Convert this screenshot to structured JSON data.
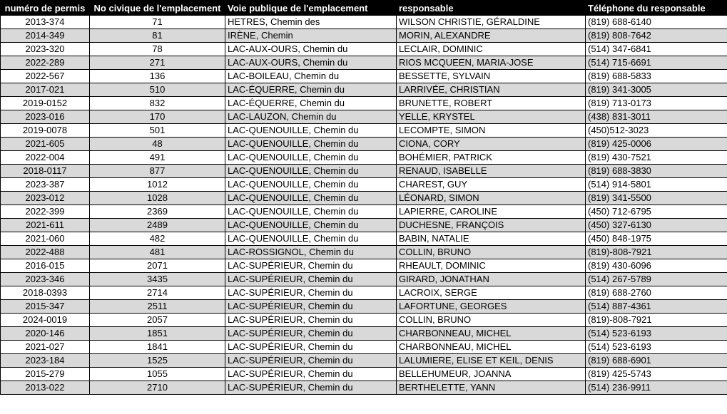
{
  "table": {
    "headers": [
      "numéro de permis",
      "No civique de l'emplacement",
      "Voie publique de l'emplacement",
      "responsable",
      "Téléphone  du responsable"
    ],
    "colors": {
      "header_bg": "#000000",
      "header_text": "#ffffff",
      "row_alt_bg": "#d9d9d9",
      "row_bg": "#ffffff",
      "border": "#000000"
    },
    "rows": [
      {
        "permit": "2013-374",
        "civic": "71",
        "street": "HETRES, Chemin des",
        "responsible": "WILSON CHRISTIE, GÉRALDINE",
        "phone": "(819) 688-6140"
      },
      {
        "permit": "2014-349",
        "civic": "81",
        "street": "IRÈNE, Chemin",
        "responsible": "MORIN, ALEXANDRE",
        "phone": "(819) 808-7642"
      },
      {
        "permit": "2023-320",
        "civic": "78",
        "street": "LAC-AUX-OURS, Chemin du",
        "responsible": "LECLAIR, DOMINIC",
        "phone": "(514) 347-6841"
      },
      {
        "permit": "2022-289",
        "civic": "271",
        "street": "LAC-AUX-OURS, Chemin du",
        "responsible": "RIOS MCQUEEN, MARIA-JOSE",
        "phone": "(514) 715-6691"
      },
      {
        "permit": "2022-567",
        "civic": "136",
        "street": "LAC-BOILEAU, Chemin du",
        "responsible": "BESSETTE, SYLVAIN",
        "phone": "(819) 688-5833"
      },
      {
        "permit": "2017-021",
        "civic": "510",
        "street": "LAC-ÉQUERRE, Chemin du",
        "responsible": "LARRIVÉE, CHRISTIAN",
        "phone": "(819) 341-3005"
      },
      {
        "permit": "2019-0152",
        "civic": "832",
        "street": "LAC-ÉQUERRE, Chemin du",
        "responsible": "BRUNETTE, ROBERT",
        "phone": "(819) 713-0173"
      },
      {
        "permit": "2023-016",
        "civic": "170",
        "street": "LAC-LAUZON, Chemin du",
        "responsible": "YELLE, KRYSTEL",
        "phone": "(438) 831-3011"
      },
      {
        "permit": "2019-0078",
        "civic": "501",
        "street": "LAC-QUENOUILLE, Chemin du",
        "responsible": "LECOMPTE, SIMON",
        "phone": "(450)512-3023"
      },
      {
        "permit": "2021-605",
        "civic": "48",
        "street": "LAC-QUENOUILLE, Chemin du",
        "responsible": "CIONA, CORY",
        "phone": "(819) 425-0006"
      },
      {
        "permit": "2022-004",
        "civic": "491",
        "street": "LAC-QUENOUILLE, Chemin du",
        "responsible": "BOHÉMIER, PATRICK",
        "phone": "(819) 430-7521"
      },
      {
        "permit": "2018-0117",
        "civic": "877",
        "street": "LAC-QUENOUILLE, Chemin du",
        "responsible": "RENAUD, ISABELLE",
        "phone": "(819) 688-3830"
      },
      {
        "permit": "2023-387",
        "civic": "1012",
        "street": "LAC-QUENOUILLE, Chemin du",
        "responsible": "CHAREST, GUY",
        "phone": "(514) 914-5801"
      },
      {
        "permit": "2023-012",
        "civic": "1028",
        "street": "LAC-QUENOUILLE, Chemin du",
        "responsible": "LÉONARD, SIMON",
        "phone": "(819) 341-5500"
      },
      {
        "permit": "2022-399",
        "civic": "2369",
        "street": "LAC-QUENOUILLE, Chemin du",
        "responsible": "LAPIERRE, CAROLINE",
        "phone": "(450) 712-6795"
      },
      {
        "permit": "2021-611",
        "civic": "2489",
        "street": "LAC-QUENOUILLE, Chemin du",
        "responsible": "DUCHESNE, FRANÇOIS",
        "phone": "(450) 327-6130"
      },
      {
        "permit": "2021-060",
        "civic": "482",
        "street": "LAC-QUENOUILLE, Chemin du",
        "responsible": "BABIN, NATALIE",
        "phone": "(450) 848-1975"
      },
      {
        "permit": "2022-488",
        "civic": "481",
        "street": "LAC-ROSSIGNOL, Chemin du",
        "responsible": "COLLIN, BRUNO",
        "phone": "(819)-808-7921"
      },
      {
        "permit": "2016-015",
        "civic": "2071",
        "street": "LAC-SUPÉRIEUR, Chemin du",
        "responsible": "RHEAULT, DOMINIC",
        "phone": "(819) 430-6096"
      },
      {
        "permit": "2023-346",
        "civic": "3435",
        "street": "LAC-SUPÉRIEUR, Chemin du",
        "responsible": "GIRARD, JONATHAN",
        "phone": "(514) 267-5789"
      },
      {
        "permit": "2018-0393",
        "civic": "2714",
        "street": "LAC-SUPÉRIEUR, Chemin du",
        "responsible": "LACROIX, SERGE",
        "phone": "(819) 688-2760"
      },
      {
        "permit": "2015-347",
        "civic": "2511",
        "street": "LAC-SUPÉRIEUR, Chemin du",
        "responsible": "LAFORTUNE, GEORGES",
        "phone": "(514) 887-4361"
      },
      {
        "permit": "2024-0019",
        "civic": "2057",
        "street": "LAC-SUPÉRIEUR, Chemin du",
        "responsible": "COLLIN, BRUNO",
        "phone": "(819)-808-7921"
      },
      {
        "permit": "2020-146",
        "civic": "1851",
        "street": "LAC-SUPÉRIEUR, Chemin du",
        "responsible": "CHARBONNEAU, MICHEL",
        "phone": "(514) 523-6193"
      },
      {
        "permit": "2021-027",
        "civic": "1841",
        "street": "LAC-SUPÉRIEUR, Chemin du",
        "responsible": "CHARBONNEAU, MICHEL",
        "phone": "(514) 523-6193"
      },
      {
        "permit": "2023-184",
        "civic": "1525",
        "street": "LAC-SUPÉRIEUR, Chemin du",
        "responsible": "LALUMIERE, ELISE ET KEIL, DENIS",
        "phone": "(819) 688-6901"
      },
      {
        "permit": "2015-279",
        "civic": "1055",
        "street": "LAC-SUPÉRIEUR, Chemin du",
        "responsible": "BELLEHUMEUR, JOANNA",
        "phone": "(819) 425-5743"
      },
      {
        "permit": "2013-022",
        "civic": "2710",
        "street": "LAC-SUPÉRIEUR, Chemin du",
        "responsible": "BERTHELETTE, YANN",
        "phone": "(514) 236-9911"
      }
    ]
  }
}
